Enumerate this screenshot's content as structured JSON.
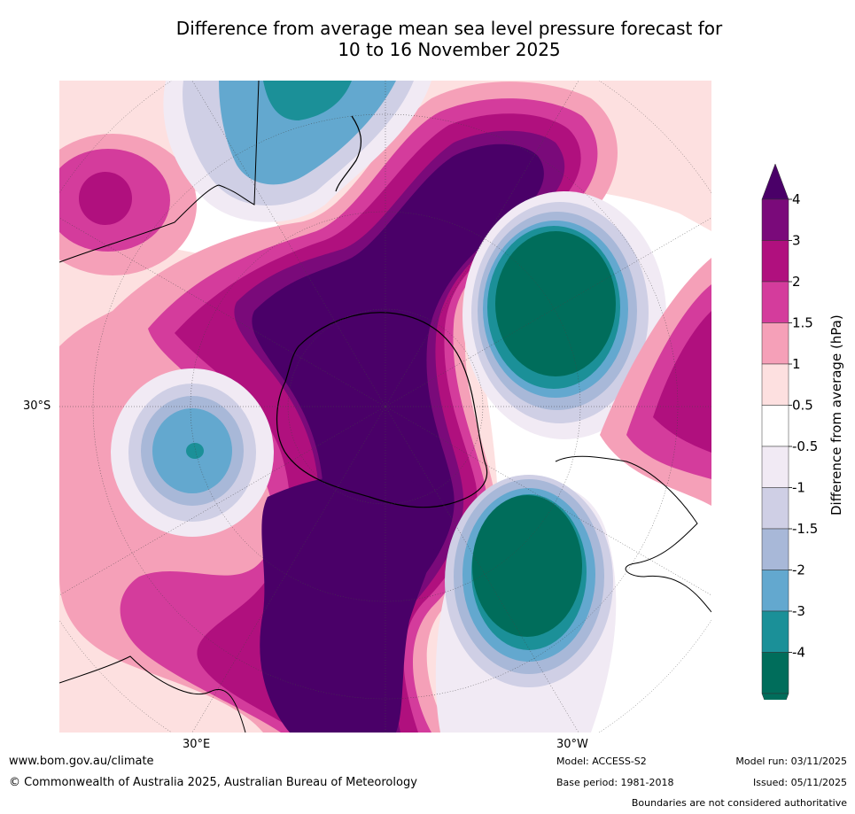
{
  "title": {
    "line1": "Difference from average mean sea level pressure forecast for",
    "line2": "10 to 16 November 2025"
  },
  "axis_labels": {
    "lat": "30°S",
    "lon_left": "30°E",
    "lon_right": "30°W"
  },
  "colorbar": {
    "title": "Difference from average (hPa)",
    "ticks": [
      "4",
      "3",
      "2",
      "1.5",
      "1",
      "0.5",
      "-0.5",
      "-1",
      "-1.5",
      "-2",
      "-3",
      "-4"
    ],
    "colors": {
      "pos_4": "#4a0068",
      "pos_3": "#7a0a7a",
      "pos_2": "#b0107e",
      "pos_1_5": "#d43c9c",
      "pos_1": "#f5a0b8",
      "pos_0_5": "#fde0e0",
      "neutral": "#ffffff",
      "neg_0_5": "#f1eaf4",
      "neg_1": "#cfcfe5",
      "neg_1_5": "#a8b8d8",
      "neg_2": "#63a8cf",
      "neg_3": "#1b9098",
      "neg_4": "#006d5b"
    }
  },
  "footer": {
    "website": "www.bom.gov.au/climate",
    "copyright": "© Commonwealth of Australia 2025, Australian Bureau of Meteorology",
    "model": "Model: ACCESS-S2",
    "base_period": "Base period: 1981-2018",
    "model_run": "Model run: 03/11/2025",
    "issued": "Issued: 05/11/2025",
    "disclaimer": "Boundaries are not considered authoritative"
  }
}
